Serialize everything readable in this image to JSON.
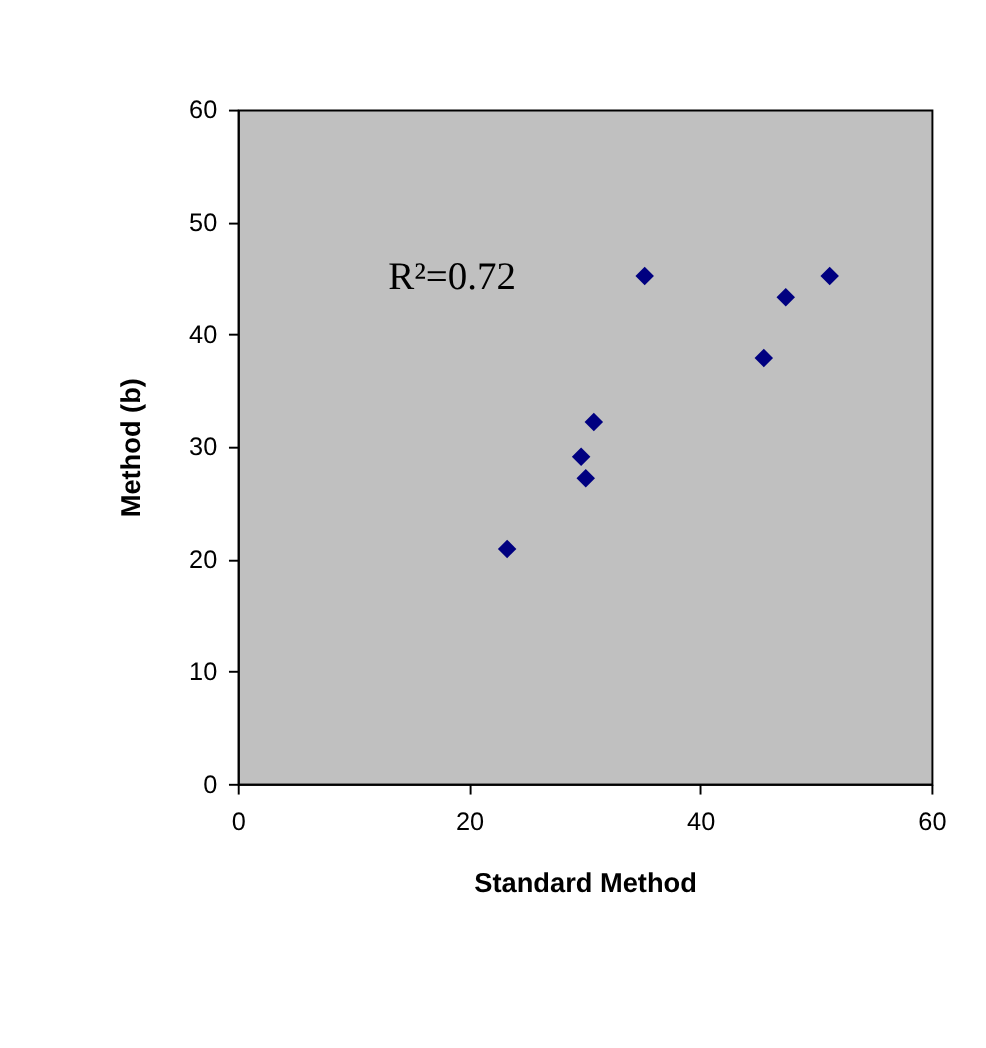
{
  "chart_data": {
    "type": "scatter",
    "xlabel": "Standard  Method",
    "ylabel": "Method  (b)",
    "x": [
      23.3,
      29.7,
      30.1,
      30.8,
      35.2,
      45.5,
      47.4,
      51.2
    ],
    "values": [
      20.9,
      29.1,
      27.2,
      32.2,
      45.2,
      37.9,
      43.3,
      45.2
    ],
    "color": "#000080",
    "marker": "diamond",
    "xlim": [
      0,
      60
    ],
    "xticks": [
      0,
      20,
      40,
      60
    ],
    "ylim": [
      0,
      60
    ],
    "yticks": [
      0,
      10,
      20,
      30,
      40,
      50,
      60
    ],
    "grid": false,
    "annotations": [
      "R²=0.72"
    ]
  }
}
